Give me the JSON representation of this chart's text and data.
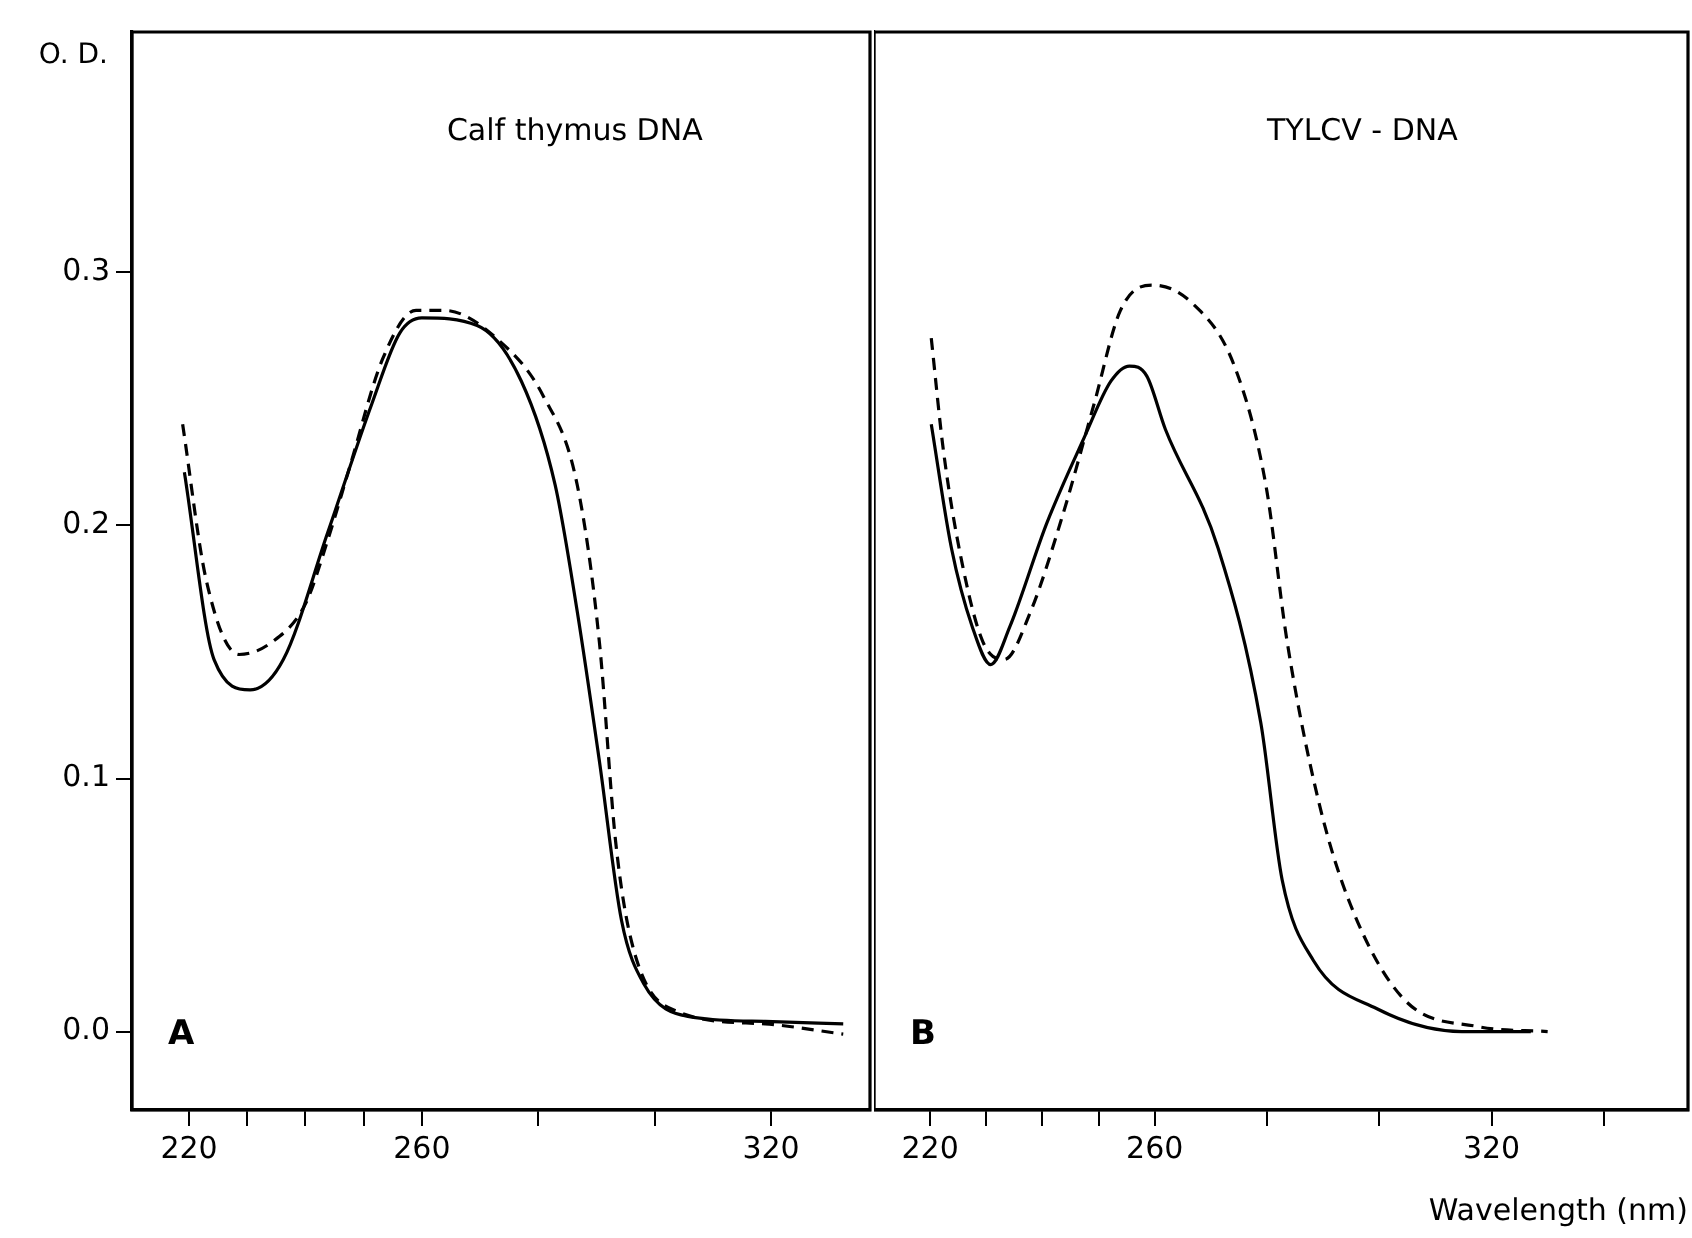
{
  "chart_data": [
    {
      "type": "line",
      "title": "Calf thymus DNA",
      "ylabel": "O. D.",
      "annotations": [
        "A"
      ],
      "marker": "none",
      "xlim": [
        210.2,
        337
      ],
      "xticks": [
        220,
        {
          "value": 230,
          "label": null
        },
        {
          "value": 240,
          "label": null
        },
        {
          "value": 250,
          "label": null
        },
        260,
        {
          "value": 280,
          "label": null
        },
        {
          "value": 300,
          "label": null
        },
        320
      ],
      "ylim": [
        -0.031,
        0.395
      ],
      "yticks": [
        {
          "value": 0,
          "label": "0.0"
        },
        0.1,
        0.2,
        0.3
      ],
      "series": [
        {
          "color": "#000000",
          "line_style": "solid",
          "x": [
            219.2,
            224.3,
            230.5,
            236.2,
            243.8,
            251.4,
            256.2,
            260,
            269.5,
            277.1,
            282.9,
            286.7,
            290.5,
            294.3,
            298.1,
            305.7,
            319,
            332.4
          ],
          "values": [
            0.221,
            0.147,
            0.135,
            0.147,
            0.197,
            0.248,
            0.276,
            0.282,
            0.279,
            0.257,
            0.216,
            0.166,
            0.107,
            0.044,
            0.019,
            0.006,
            0.004,
            0.003
          ]
        },
        {
          "color": "#000000",
          "line_style": "dashed",
          "x": [
            218.9,
            222.9,
            228.6,
            234.3,
            240,
            243.8,
            247.6,
            253.3,
            259,
            263.8,
            273.3,
            280.9,
            286.7,
            290.5,
            293.3,
            296.2,
            303.8,
            319,
            332.4
          ],
          "values": [
            0.24,
            0.179,
            0.149,
            0.154,
            0.169,
            0.194,
            0.223,
            0.266,
            0.285,
            0.285,
            0.273,
            0.251,
            0.216,
            0.154,
            0.075,
            0.034,
            0.008,
            0.003,
            -0.001
          ]
        }
      ]
    },
    {
      "type": "line",
      "title": "TYLCV - DNA",
      "xlabel": "Wavelength (nm)",
      "annotations": [
        "B"
      ],
      "marker": "none",
      "tick_labels": "x",
      "xlim": [
        210,
        355
      ],
      "xticks": [
        220,
        {
          "value": 230,
          "label": null
        },
        {
          "value": 240,
          "label": null
        },
        {
          "value": 250,
          "label": null
        },
        260,
        {
          "value": 280,
          "label": null
        },
        {
          "value": 300,
          "label": null
        },
        320,
        {
          "value": 340,
          "label": null
        }
      ],
      "ylim": [
        -0.031,
        0.395
      ],
      "series": [
        {
          "color": "#000000",
          "line_style": "solid",
          "x": [
            220.2,
            223.8,
            227.5,
            230.8,
            234.2,
            240.8,
            247.5,
            252.2,
            255.5,
            258.6,
            261.9,
            271.3,
            278.9,
            282.7,
            288.3,
            299.6,
            314.7,
            327
          ],
          "values": [
            0.24,
            0.191,
            0.16,
            0.145,
            0.16,
            0.201,
            0.235,
            0.257,
            0.263,
            0.259,
            0.238,
            0.191,
            0.122,
            0.06,
            0.028,
            0.009,
            0,
            0
          ]
        },
        {
          "color": "#000000",
          "line_style": "dashed",
          "x": [
            220.2,
            222.4,
            225.7,
            229.4,
            233.2,
            237.9,
            243.6,
            249.2,
            253.9,
            259.5,
            266.6,
            274.2,
            279.8,
            283.6,
            289.2,
            294.9,
            304.3,
            317.5,
            330
          ],
          "values": [
            0.274,
            0.229,
            0.185,
            0.154,
            0.147,
            0.166,
            0.204,
            0.248,
            0.285,
            0.295,
            0.288,
            0.263,
            0.216,
            0.154,
            0.091,
            0.05,
            0.013,
            0.002,
            0
          ]
        }
      ]
    }
  ]
}
